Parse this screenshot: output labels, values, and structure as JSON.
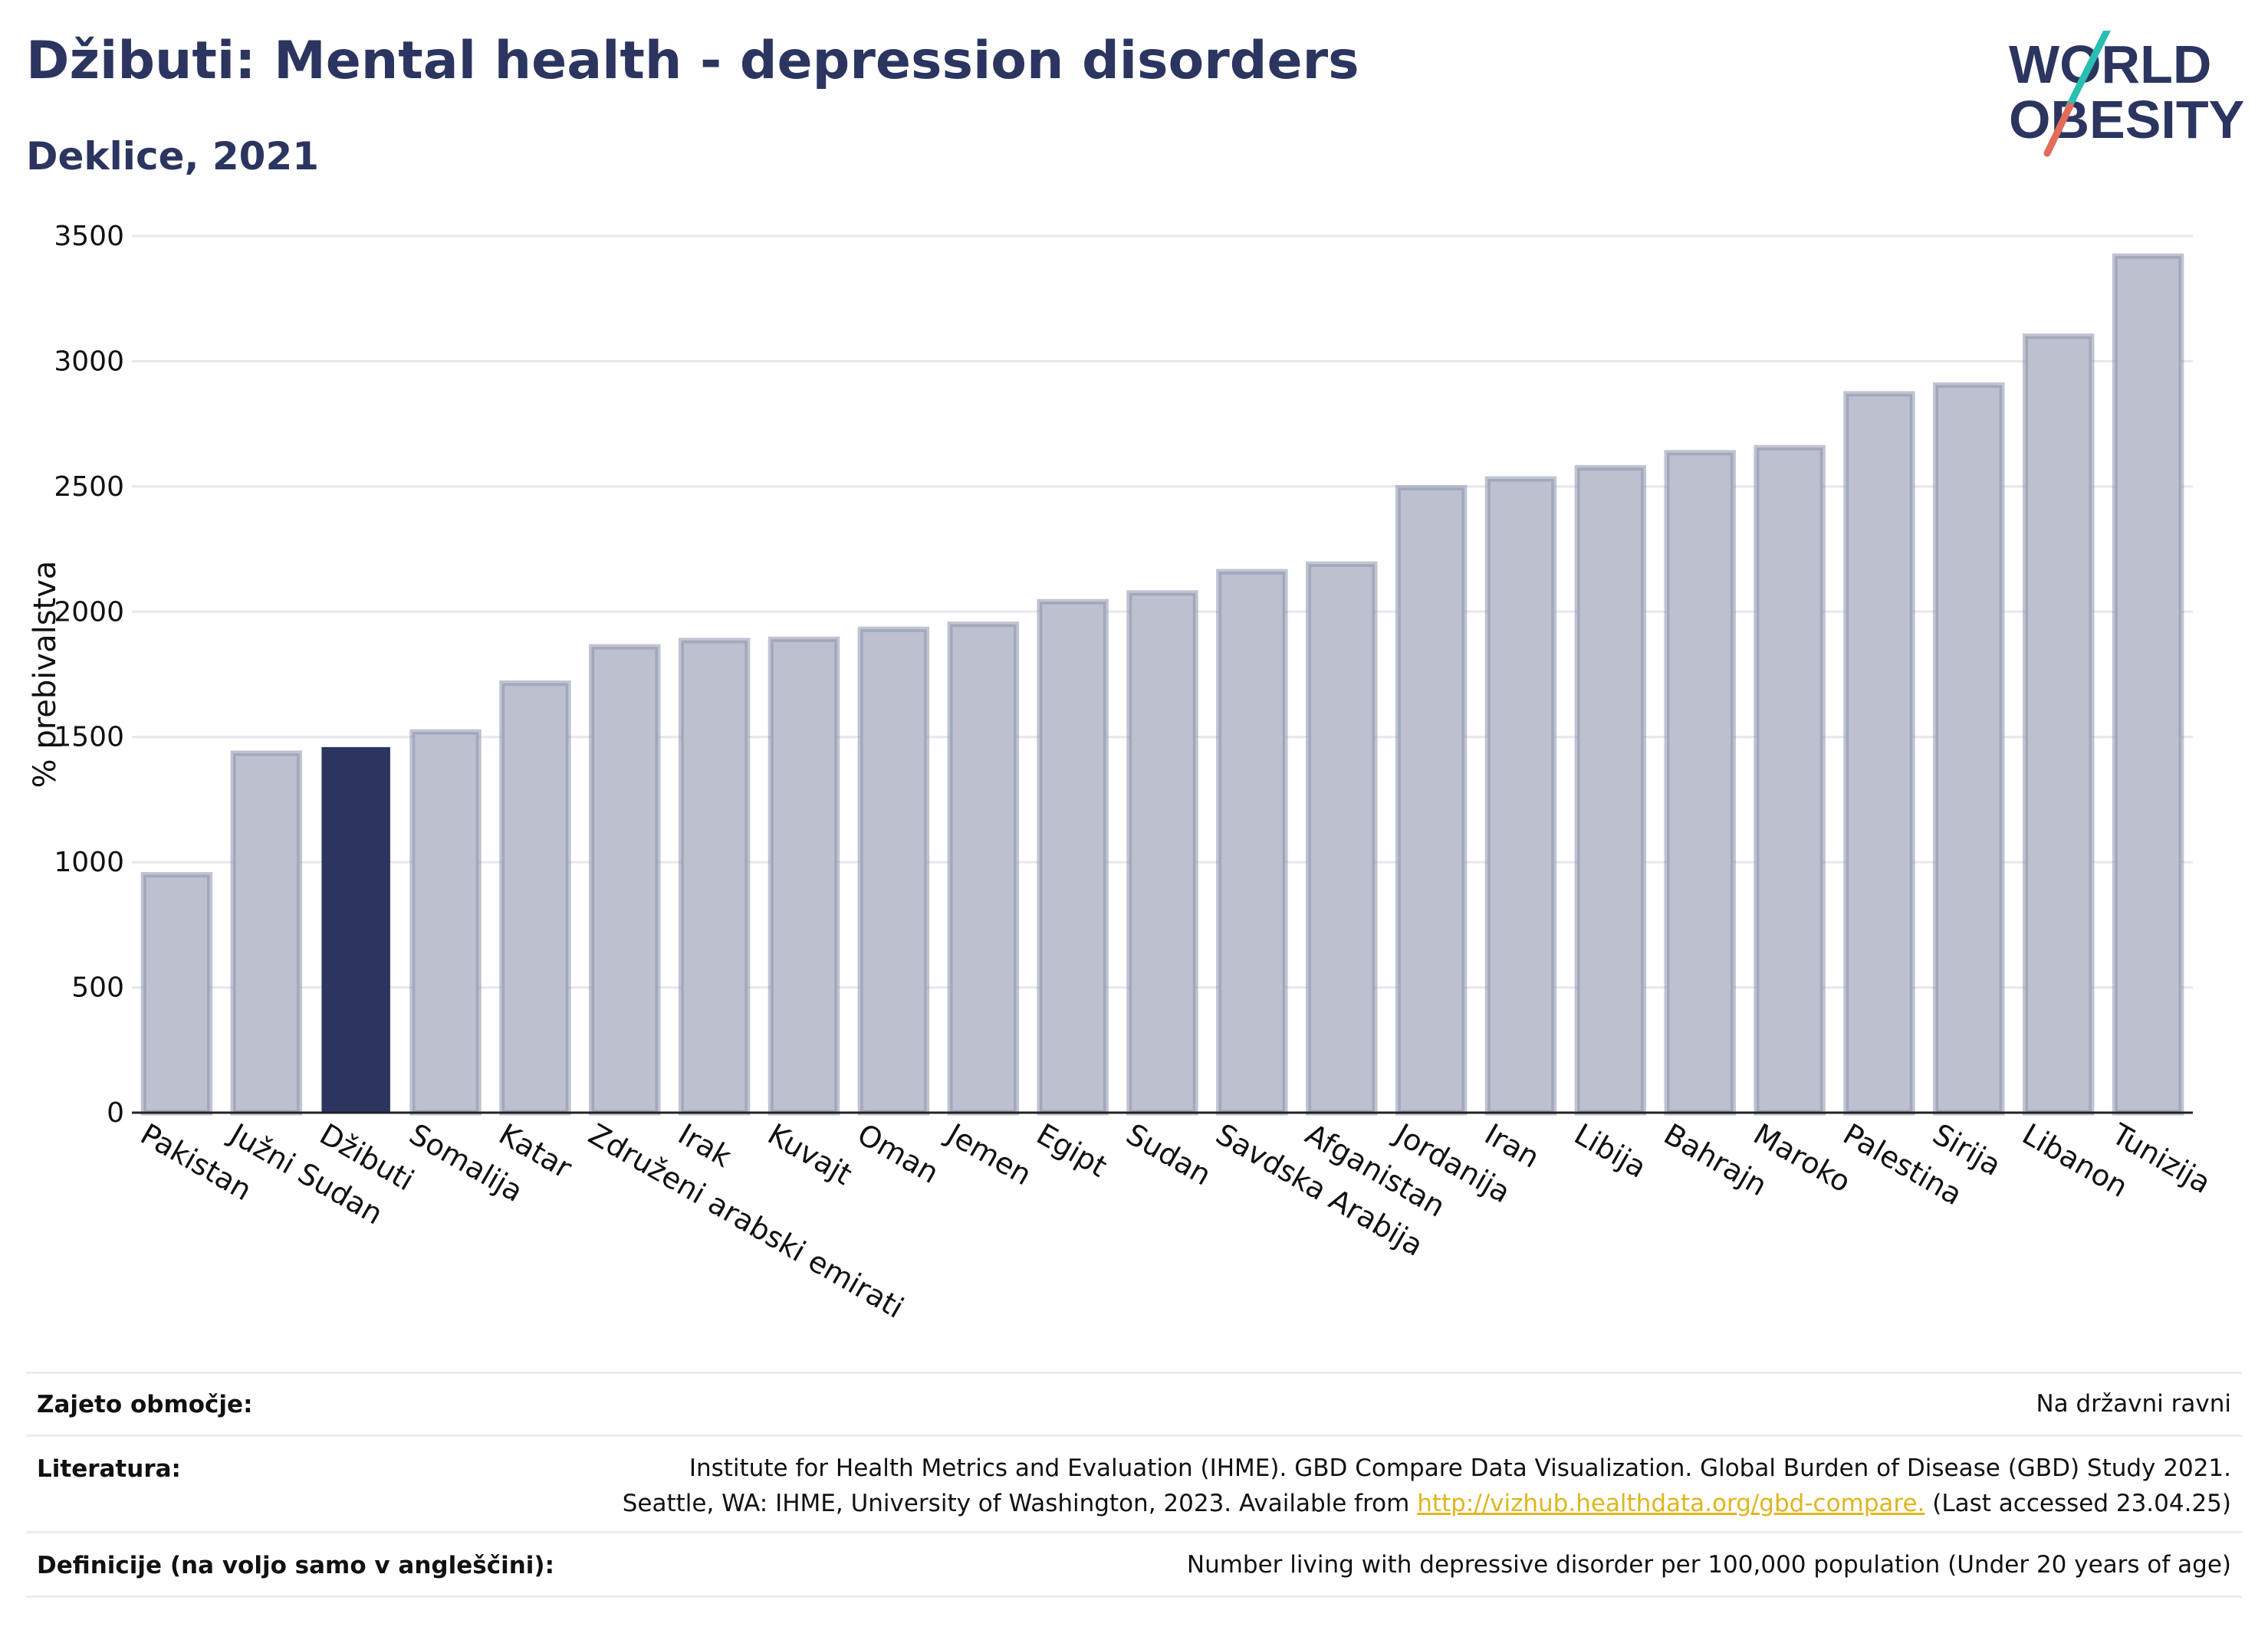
{
  "header": {
    "title": "Džibuti: Mental health - depression disorders",
    "subtitle": "Deklice, 2021"
  },
  "logo": {
    "line1": "WORLD",
    "line2": "OBESITY"
  },
  "colors": {
    "highlight": "#2b3560",
    "bar": "#bcc0cf",
    "bar_edge": "#8c93ad",
    "accent_teal": "#2bbfb3",
    "accent_red": "#e26b5a",
    "link": "#e0b51e"
  },
  "chart_data": {
    "type": "bar",
    "ylabel": "% prebivalstva",
    "ylim": [
      0,
      3500
    ],
    "yticks": [
      0,
      500,
      1000,
      1500,
      2000,
      2500,
      3000,
      3500
    ],
    "grid": true,
    "highlight": "Džibuti",
    "categories": [
      "Pakistan",
      "Južni Sudan",
      "Džibuti",
      "Somalija",
      "Katar",
      "Združeni arabski emirati",
      "Irak",
      "Kuvajt",
      "Oman",
      "Jemen",
      "Egipt",
      "Sudan",
      "Savdska Arabija",
      "Afganistan",
      "Jordanija",
      "Iran",
      "Libija",
      "Bahrajn",
      "Maroko",
      "Palestina",
      "Sirija",
      "Libanon",
      "Tunizija"
    ],
    "values": [
      950,
      1435,
      1455,
      1520,
      1715,
      1860,
      1885,
      1890,
      1930,
      1950,
      2040,
      2075,
      2160,
      2190,
      2495,
      2530,
      2575,
      2635,
      2655,
      2870,
      2905,
      3100,
      3420
    ]
  },
  "footer": {
    "coverage_label": "Zajeto območje:",
    "coverage_value": "Na državni ravni",
    "literature_label": "Literatura:",
    "literature_line1": "Institute for Health Metrics and Evaluation (IHME). GBD Compare Data Visualization. Global Burden of Disease (GBD) Study 2021.",
    "literature_line2_prefix": "Seattle, WA: IHME, University of Washington, 2023. Available from ",
    "literature_link": "http://vizhub.healthdata.org/gbd-compare.",
    "literature_line2_suffix": " (Last accessed 23.04.25)",
    "definitions_label": "Definicije (na voljo samo v angleščini):",
    "definitions_value": "Number living with depressive disorder per 100,000 population (Under 20 years of age)"
  }
}
